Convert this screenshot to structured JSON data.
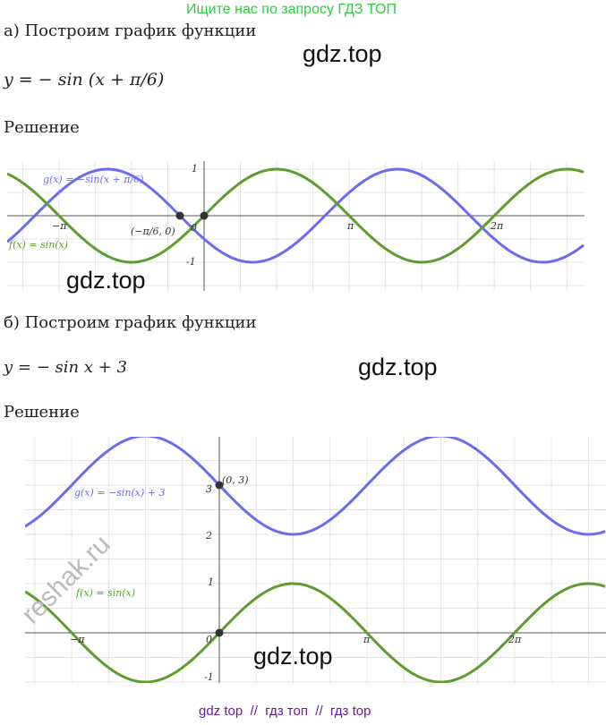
{
  "banner": "Ищите нас по запросу ГДЗ ТОП",
  "watermarks": [
    "gdz.top",
    "gdz.top",
    "gdz.top",
    "gdz.top",
    "reshak.ru"
  ],
  "part_a": {
    "heading": "а) Построим график функции",
    "formula": "y = − sin (x + π/6)",
    "solution": "Решение",
    "graph": {
      "g_label": "g(x) = −sin(x + π/6)",
      "f_label": "f(x) = sin(x)",
      "point": "(−π/6, 0)",
      "ticks": [
        "1",
        "-1",
        "−π",
        "π",
        "2π",
        "0"
      ]
    }
  },
  "part_b": {
    "heading": "б) Построим график функции",
    "formula": "y = − sin x + 3",
    "solution": "Решение",
    "graph": {
      "g_label": "g(x) = −sin(x) + 3",
      "f_label": "f(x) = sin(x)",
      "point": "(0, 3)",
      "ticks": [
        "3",
        "2",
        "1",
        "-1",
        "−π",
        "π",
        "2π",
        "0"
      ]
    }
  },
  "footer": "gdz top  //  гдз топ  //  гдз top"
}
